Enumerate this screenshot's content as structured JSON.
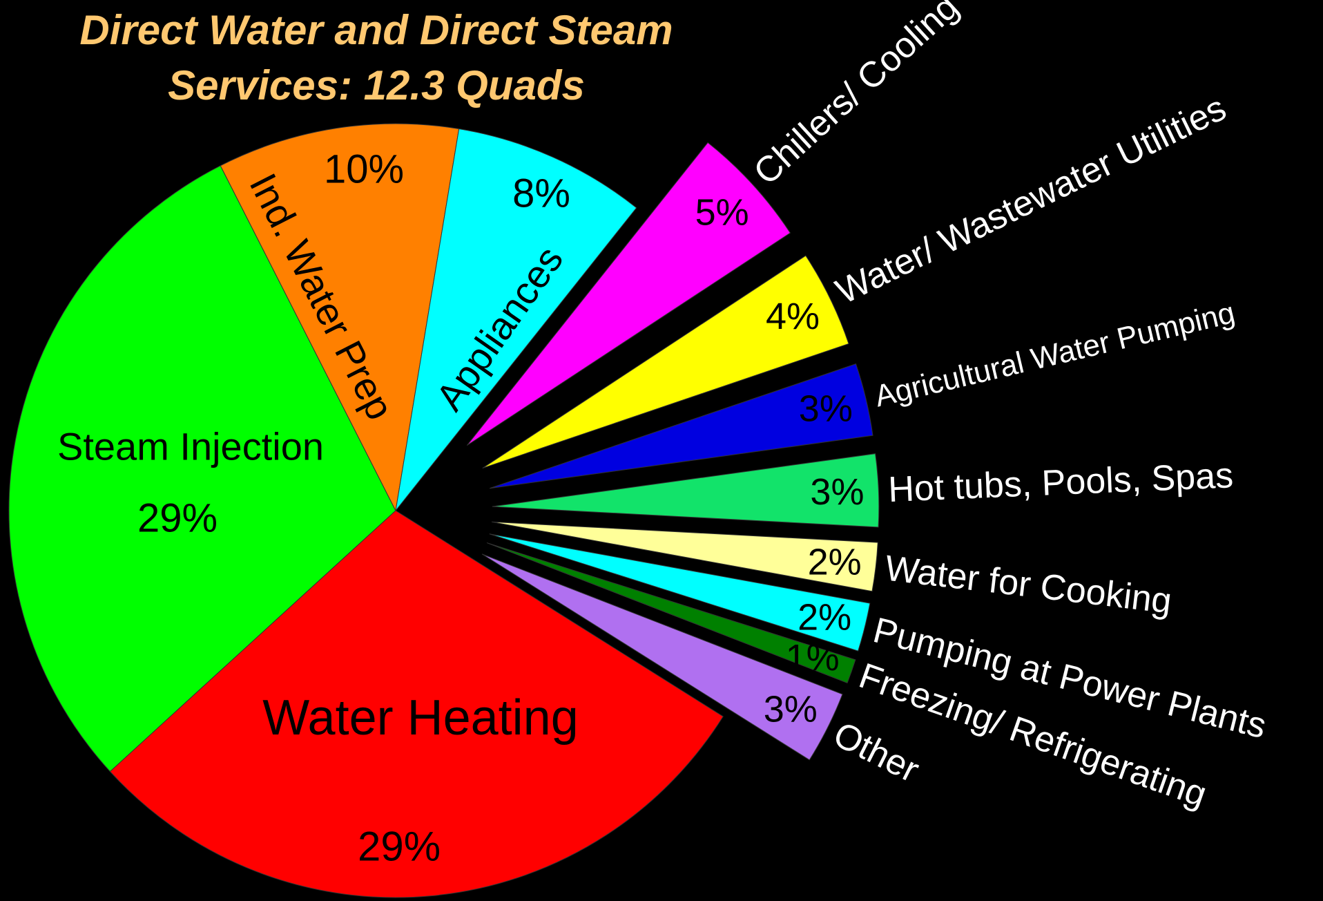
{
  "chart_data": {
    "type": "pie",
    "title": "Direct Water and Direct Steam Services: 12.3 Quads",
    "categories": [
      "Steam Injection",
      "Ind. Water Prep",
      "Appliances",
      "Chillers/ Cooling",
      "Water/ Wastewater Utilities",
      "Agricultural Water Pumping",
      "Hot tubs, Pools, Spas",
      "Water for Cooking",
      "Pumping at Power Plants",
      "Freezing/ Refrigerating",
      "Other",
      "Water Heating"
    ],
    "values": [
      29,
      10,
      8,
      5,
      4,
      3,
      3,
      2,
      2,
      1,
      3,
      29
    ],
    "value_labels": [
      "29%",
      "10%",
      "8%",
      "5%",
      "4%",
      "3%",
      "3%",
      "2%",
      "2%",
      "1%",
      "3%",
      "29%"
    ],
    "colors": [
      "#00ff00",
      "#ff8000",
      "#00ffff",
      "#ff00ff",
      "#ffff00",
      "#0000e0",
      "#12e36a",
      "#ffff99",
      "#00ffff",
      "#008000",
      "#b070f0",
      "#ff0000"
    ]
  }
}
